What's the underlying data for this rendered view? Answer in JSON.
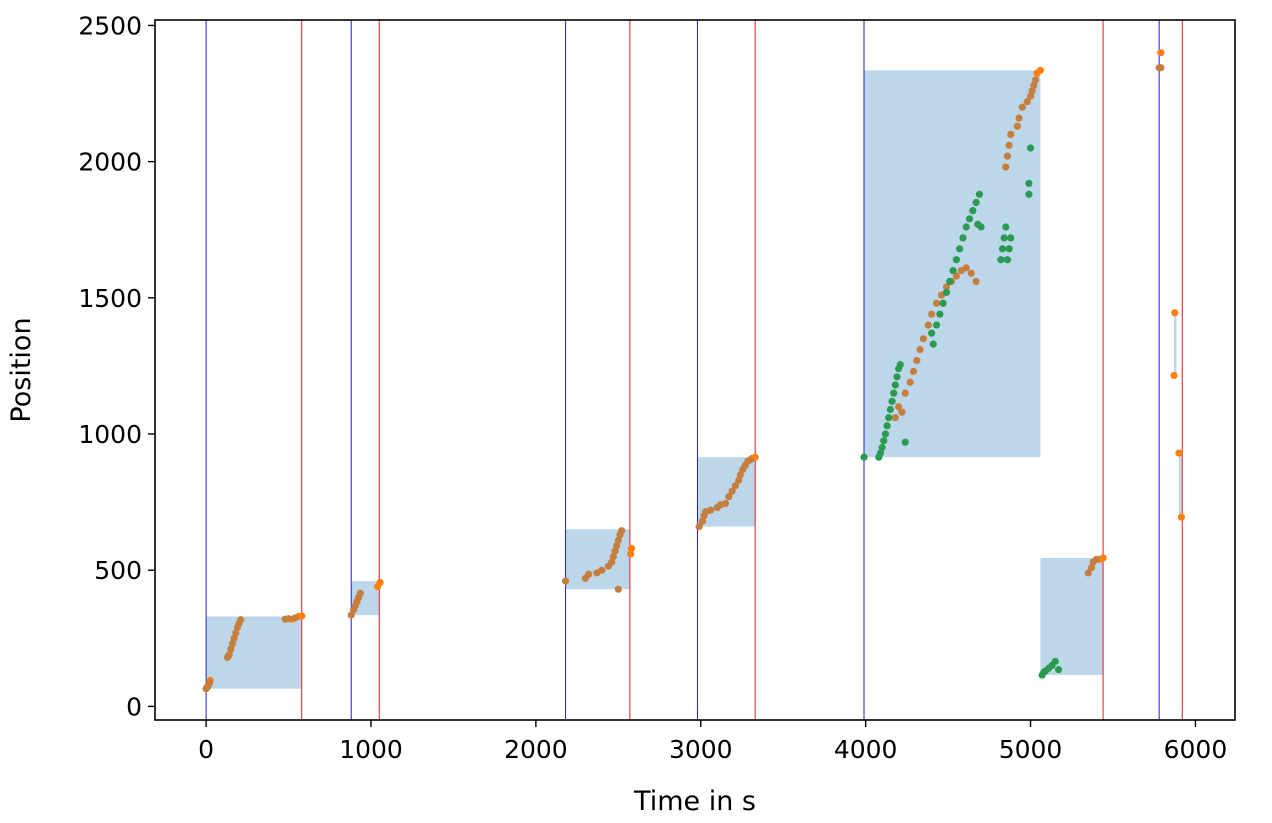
{
  "chart_data": {
    "type": "scatter",
    "title": "",
    "xlabel": "Time in s",
    "ylabel": "Position",
    "xlim": [
      -310,
      6240
    ],
    "ylim": [
      -50,
      2520
    ],
    "xticks": [
      0,
      1000,
      2000,
      3000,
      4000,
      5000,
      6000
    ],
    "yticks": [
      0,
      500,
      1000,
      1500,
      2000,
      2500
    ],
    "xtick_labels": [
      "0",
      "1000",
      "2000",
      "3000",
      "4000",
      "5000",
      "6000"
    ],
    "ytick_labels": [
      "0",
      "500",
      "1000",
      "1500",
      "2000",
      "2500"
    ],
    "grid": false,
    "legend": false,
    "colors": {
      "start_line": "#1f1fd0",
      "end_line": "#d62020",
      "region": "#bdd7ea",
      "orange": "#ff7f0e",
      "brown": "#c67e3e",
      "green": "#2a9a50"
    },
    "start_lines": [
      0,
      880,
      2180,
      2980,
      3990,
      5780
    ],
    "end_lines": [
      580,
      1050,
      2570,
      3330,
      5440,
      5920
    ],
    "regions": [
      {
        "x0": 0,
        "x1": 580,
        "y0": 65,
        "y1": 330
      },
      {
        "x0": 880,
        "x1": 1050,
        "y0": 335,
        "y1": 460
      },
      {
        "x0": 2180,
        "x1": 2570,
        "y0": 430,
        "y1": 650
      },
      {
        "x0": 2980,
        "x1": 3330,
        "y0": 660,
        "y1": 915
      },
      {
        "x0": 3990,
        "x1": 5060,
        "y0": 915,
        "y1": 2335
      },
      {
        "x0": 5060,
        "x1": 5440,
        "y0": 115,
        "y1": 545
      },
      {
        "x0": 5870,
        "x1": 5885,
        "y0": 1220,
        "y1": 1440
      },
      {
        "x0": 5900,
        "x1": 5915,
        "y0": 700,
        "y1": 930
      }
    ],
    "series": [
      {
        "color": "orange",
        "points": [
          [
            5,
            70
          ],
          [
            15,
            80
          ],
          [
            25,
            95
          ],
          [
            520,
            320
          ],
          [
            560,
            330
          ],
          [
            580,
            332
          ],
          [
            1040,
            440
          ],
          [
            1055,
            455
          ],
          [
            2575,
            560
          ],
          [
            2580,
            580
          ],
          [
            3310,
            910
          ],
          [
            3330,
            915
          ],
          [
            5040,
            2325
          ],
          [
            5060,
            2335
          ],
          [
            5420,
            540
          ],
          [
            5440,
            545
          ],
          [
            5790,
            2400
          ],
          [
            5875,
            1445
          ],
          [
            5870,
            1215
          ],
          [
            5900,
            930
          ],
          [
            5915,
            695
          ]
        ]
      },
      {
        "color": "brown",
        "points": [
          [
            0,
            65
          ],
          [
            10,
            72
          ],
          [
            20,
            85
          ],
          [
            130,
            180
          ],
          [
            140,
            190
          ],
          [
            150,
            210
          ],
          [
            160,
            230
          ],
          [
            170,
            250
          ],
          [
            180,
            270
          ],
          [
            190,
            290
          ],
          [
            200,
            305
          ],
          [
            210,
            318
          ],
          [
            480,
            320
          ],
          [
            500,
            322
          ],
          [
            540,
            325
          ],
          [
            880,
            335
          ],
          [
            895,
            355
          ],
          [
            905,
            370
          ],
          [
            915,
            385
          ],
          [
            925,
            400
          ],
          [
            935,
            415
          ],
          [
            2180,
            460
          ],
          [
            2300,
            470
          ],
          [
            2320,
            485
          ],
          [
            2370,
            490
          ],
          [
            2400,
            500
          ],
          [
            2440,
            515
          ],
          [
            2460,
            530
          ],
          [
            2470,
            550
          ],
          [
            2480,
            570
          ],
          [
            2490,
            590
          ],
          [
            2500,
            610
          ],
          [
            2510,
            630
          ],
          [
            2520,
            645
          ],
          [
            2500,
            430
          ],
          [
            2990,
            660
          ],
          [
            3010,
            680
          ],
          [
            3020,
            700
          ],
          [
            3030,
            715
          ],
          [
            3060,
            720
          ],
          [
            3100,
            730
          ],
          [
            3120,
            740
          ],
          [
            3150,
            745
          ],
          [
            3170,
            770
          ],
          [
            3190,
            790
          ],
          [
            3210,
            810
          ],
          [
            3230,
            830
          ],
          [
            3240,
            850
          ],
          [
            3255,
            870
          ],
          [
            3270,
            885
          ],
          [
            3285,
            900
          ],
          [
            3300,
            905
          ],
          [
            4200,
            1100
          ],
          [
            4240,
            1150
          ],
          [
            4270,
            1190
          ],
          [
            4290,
            1230
          ],
          [
            4310,
            1270
          ],
          [
            4330,
            1310
          ],
          [
            4350,
            1350
          ],
          [
            4380,
            1400
          ],
          [
            4400,
            1440
          ],
          [
            4430,
            1480
          ],
          [
            4460,
            1510
          ],
          [
            4490,
            1540
          ],
          [
            4520,
            1560
          ],
          [
            4550,
            1580
          ],
          [
            4580,
            1600
          ],
          [
            4610,
            1610
          ],
          [
            4640,
            1590
          ],
          [
            4670,
            1560
          ],
          [
            4180,
            1060
          ],
          [
            4220,
            1080
          ],
          [
            4850,
            1980
          ],
          [
            4860,
            2020
          ],
          [
            4870,
            2060
          ],
          [
            4880,
            2100
          ],
          [
            4920,
            2130
          ],
          [
            4930,
            2160
          ],
          [
            4950,
            2200
          ],
          [
            4980,
            2220
          ],
          [
            5000,
            2240
          ],
          [
            5010,
            2260
          ],
          [
            5020,
            2280
          ],
          [
            5030,
            2300
          ],
          [
            5350,
            490
          ],
          [
            5370,
            510
          ],
          [
            5380,
            530
          ],
          [
            5400,
            540
          ],
          [
            5780,
            2345
          ],
          [
            5790,
            2345
          ]
        ]
      },
      {
        "color": "green",
        "points": [
          [
            3990,
            915
          ],
          [
            4080,
            915
          ],
          [
            4090,
            930
          ],
          [
            4100,
            950
          ],
          [
            4110,
            975
          ],
          [
            4120,
            1000
          ],
          [
            4130,
            1030
          ],
          [
            4140,
            1060
          ],
          [
            4150,
            1090
          ],
          [
            4160,
            1120
          ],
          [
            4170,
            1150
          ],
          [
            4180,
            1180
          ],
          [
            4190,
            1210
          ],
          [
            4200,
            1240
          ],
          [
            4210,
            1255
          ],
          [
            4240,
            970
          ],
          [
            4400,
            1370
          ],
          [
            4410,
            1330
          ],
          [
            4430,
            1400
          ],
          [
            4450,
            1440
          ],
          [
            4470,
            1480
          ],
          [
            4490,
            1520
          ],
          [
            4510,
            1560
          ],
          [
            4530,
            1600
          ],
          [
            4550,
            1640
          ],
          [
            4570,
            1680
          ],
          [
            4590,
            1720
          ],
          [
            4610,
            1760
          ],
          [
            4630,
            1790
          ],
          [
            4650,
            1820
          ],
          [
            4670,
            1850
          ],
          [
            4690,
            1880
          ],
          [
            4680,
            1770
          ],
          [
            4700,
            1760
          ],
          [
            4820,
            1640
          ],
          [
            4830,
            1680
          ],
          [
            4840,
            1720
          ],
          [
            4850,
            1760
          ],
          [
            4860,
            1640
          ],
          [
            4870,
            1680
          ],
          [
            4880,
            1720
          ],
          [
            5000,
            2050
          ],
          [
            4990,
            1920
          ],
          [
            4990,
            1880
          ],
          [
            5070,
            115
          ],
          [
            5080,
            125
          ],
          [
            5090,
            130
          ],
          [
            5110,
            140
          ],
          [
            5130,
            150
          ],
          [
            5150,
            165
          ],
          [
            5170,
            135
          ]
        ]
      }
    ]
  }
}
